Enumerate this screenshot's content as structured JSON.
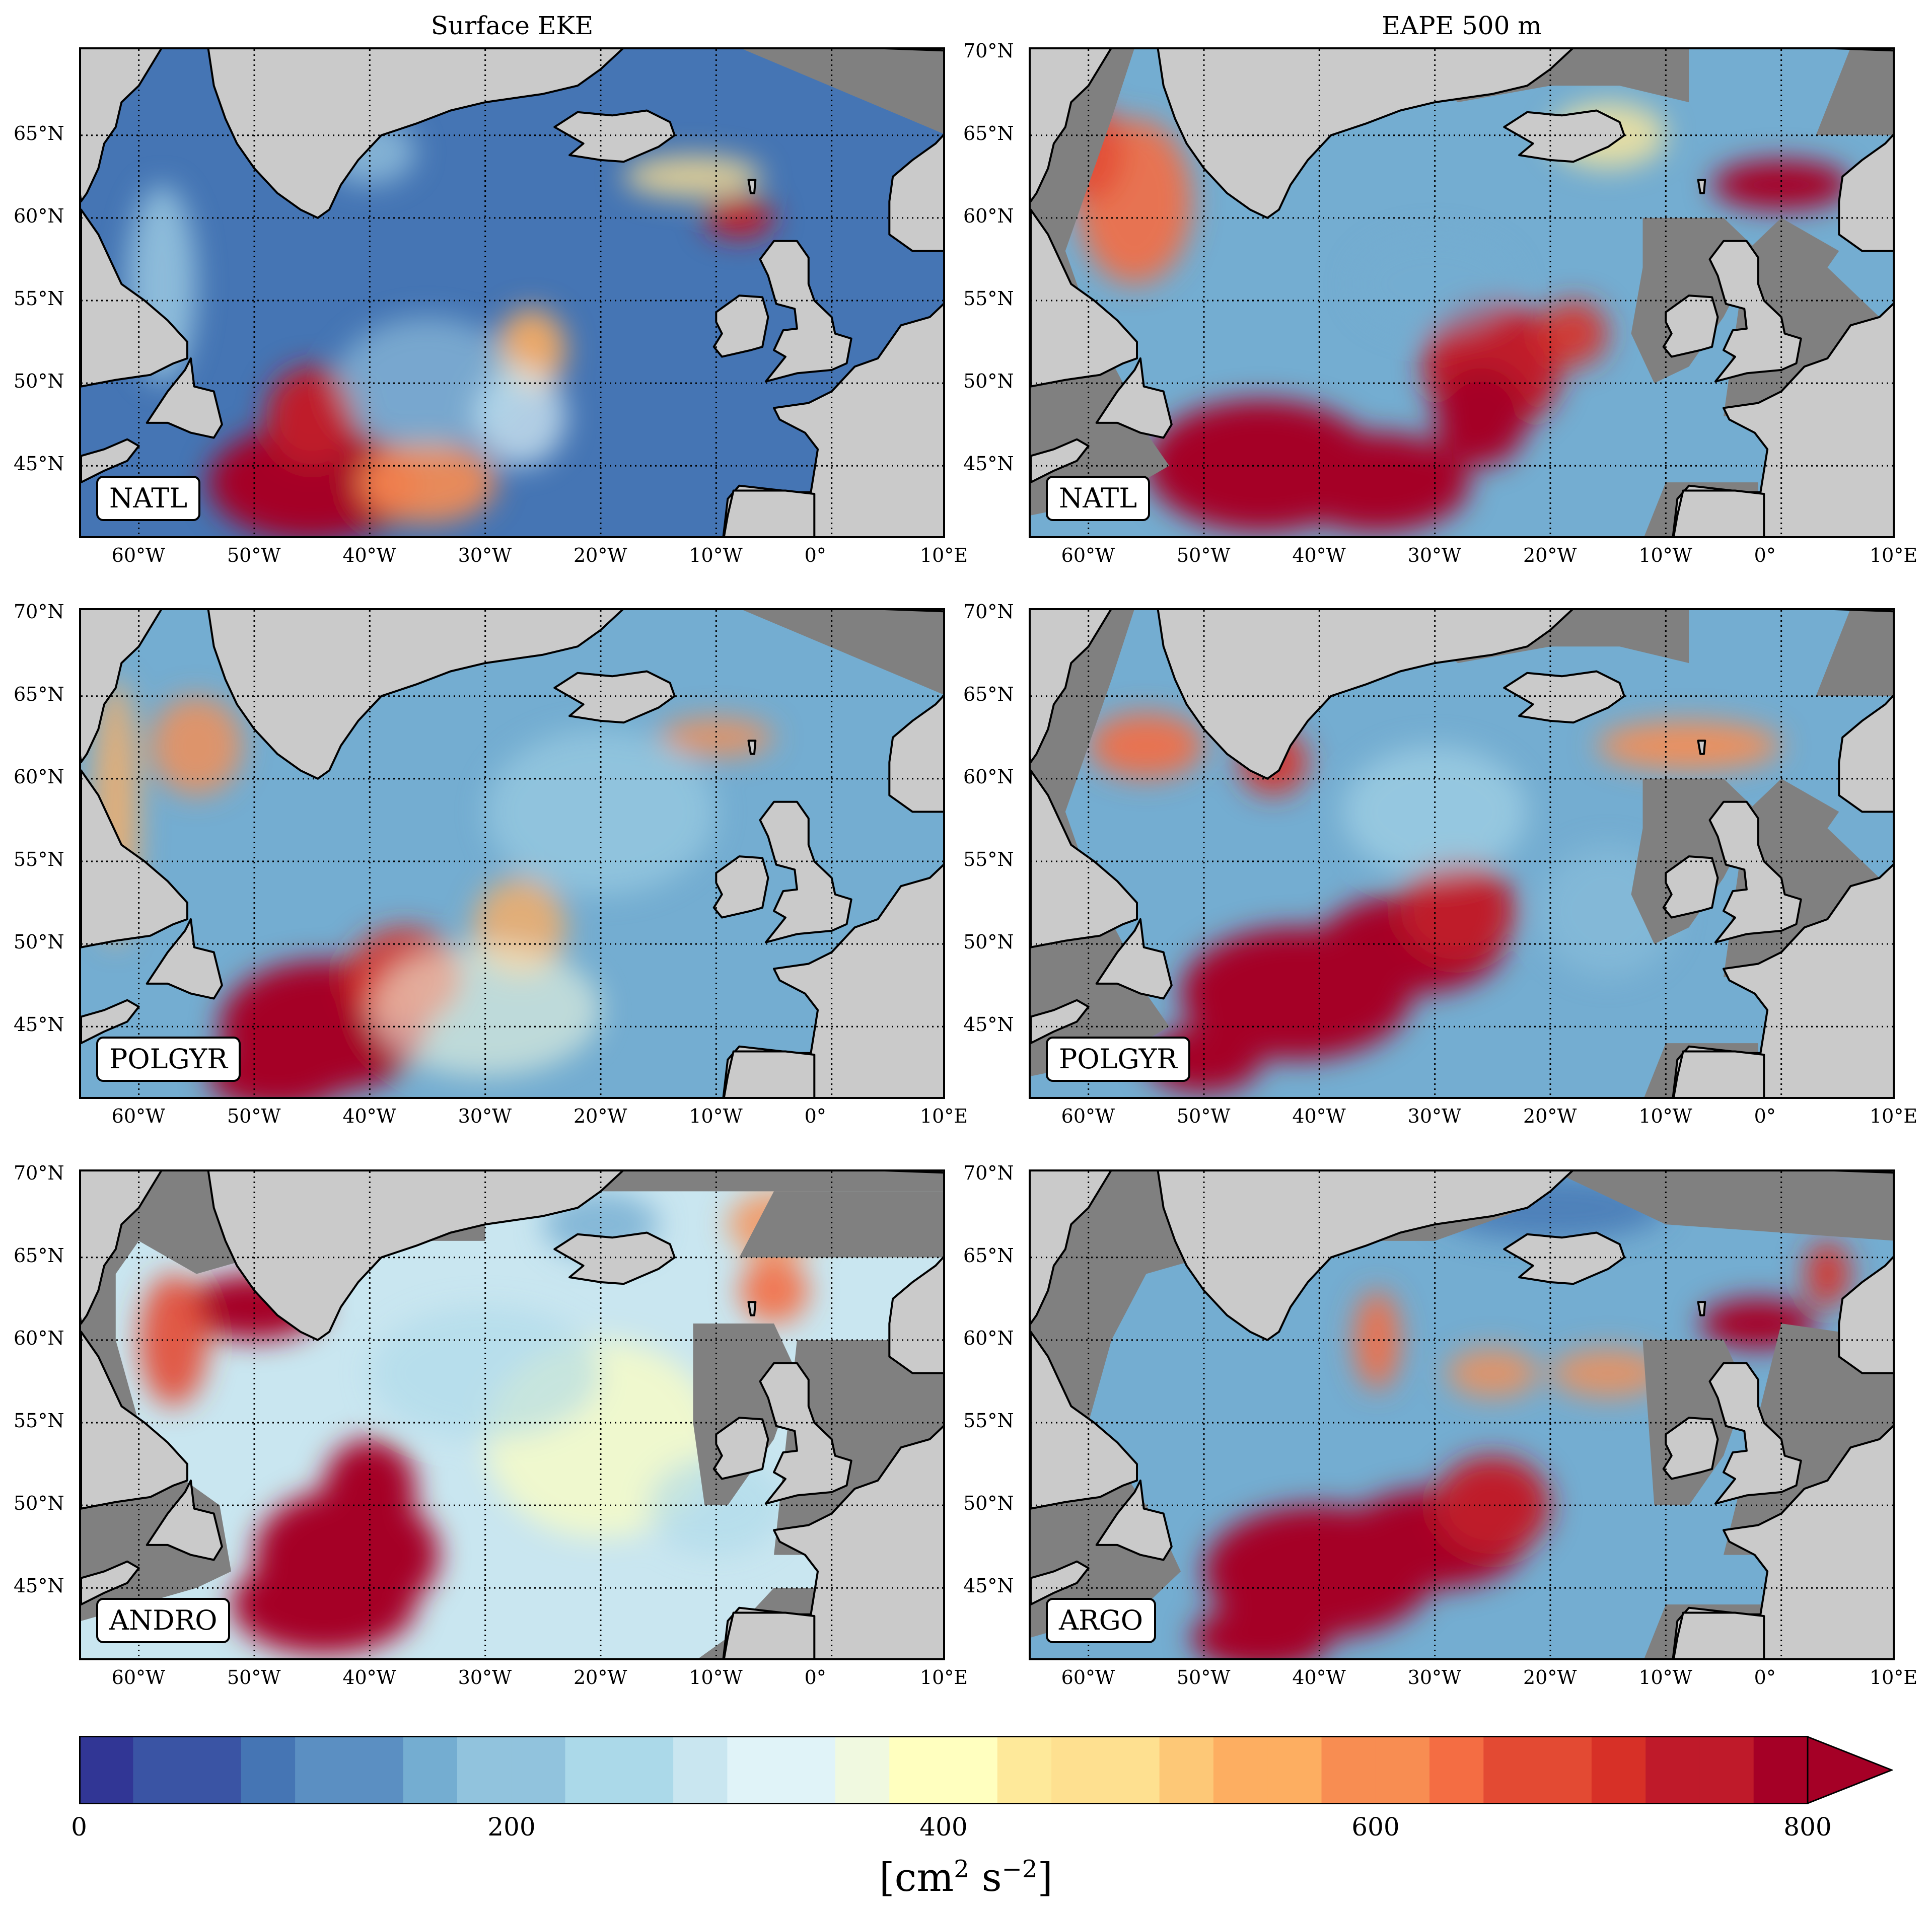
{
  "column_titles": [
    "Surface EKE",
    "EAPE 500 m"
  ],
  "lon_ticks": [
    "60°W",
    "50°W",
    "40°W",
    "30°W",
    "20°W",
    "10°W",
    "0°",
    "10°E"
  ],
  "lat_ticks": [
    "70°N",
    "65°N",
    "60°N",
    "55°N",
    "50°N",
    "45°N"
  ],
  "panels": [
    {
      "label": "NATL",
      "field": "Surface EKE"
    },
    {
      "label": "NATL",
      "field": "EAPE 500 m"
    },
    {
      "label": "POLGYR",
      "field": "Surface EKE"
    },
    {
      "label": "POLGYR",
      "field": "EAPE 500 m"
    },
    {
      "label": "ANDRO",
      "field": "Surface EKE"
    },
    {
      "label": "ARGO",
      "field": "EAPE 500 m"
    }
  ],
  "colorbar": {
    "ticks": [
      "0",
      "200",
      "400",
      "600",
      "800"
    ],
    "min": 0,
    "max": 800,
    "extend": "max",
    "colors": [
      "#313695",
      "#3a54a4",
      "#4575b4",
      "#5b8fc2",
      "#74add1",
      "#91c3dd",
      "#abd9e9",
      "#c9e6f0",
      "#e0f3f8",
      "#f0f9e0",
      "#ffffbf",
      "#fee99a",
      "#fee090",
      "#fdc877",
      "#fdae61",
      "#f88d52",
      "#f46d43",
      "#e34a33",
      "#d73027",
      "#bf1a2a",
      "#a50026"
    ],
    "unit_base": "[cm",
    "unit_exp1": "2",
    "unit_mid": " s",
    "unit_exp2": "−2",
    "unit_end": "]"
  },
  "map_colors": {
    "land": "#cacaca",
    "mask": "#808080",
    "coast": "#000000",
    "grid": "#000000"
  }
}
